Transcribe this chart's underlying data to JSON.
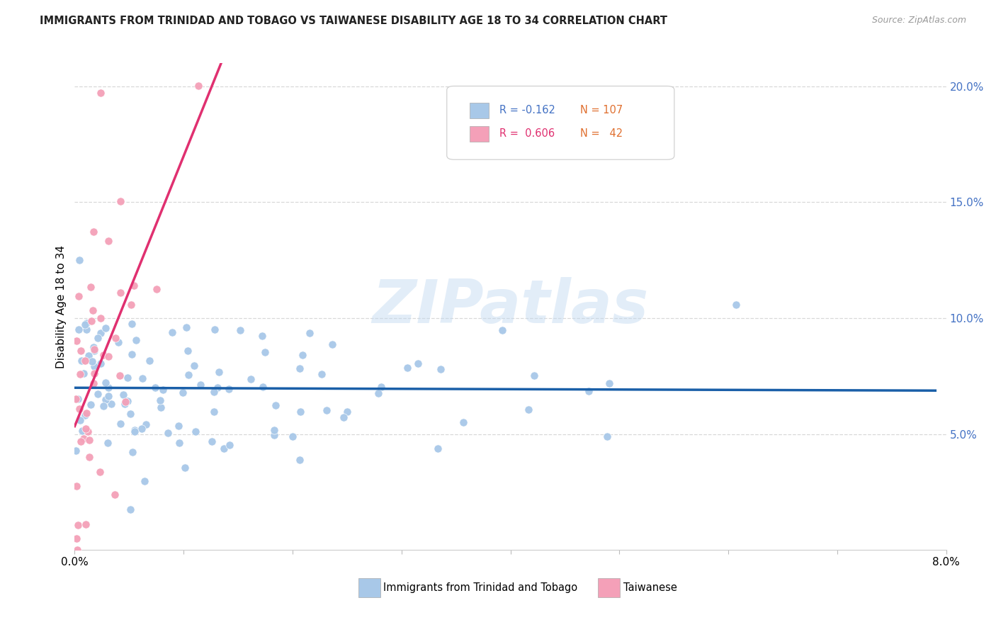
{
  "title": "IMMIGRANTS FROM TRINIDAD AND TOBAGO VS TAIWANESE DISABILITY AGE 18 TO 34 CORRELATION CHART",
  "source": "Source: ZipAtlas.com",
  "ylabel": "Disability Age 18 to 34",
  "xlim": [
    0.0,
    0.08
  ],
  "ylim": [
    0.0,
    0.21
  ],
  "right_yticks": [
    0.05,
    0.1,
    0.15,
    0.2
  ],
  "right_yticklabels": [
    "5.0%",
    "10.0%",
    "15.0%",
    "20.0%"
  ],
  "blue_scatter_color": "#a8c8e8",
  "blue_line_color": "#1a5fa8",
  "pink_scatter_color": "#f4a0b8",
  "pink_line_color": "#e03070",
  "watermark": "ZIPatlas",
  "bg_color": "#ffffff",
  "grid_color": "#d8d8d8",
  "title_color": "#222222",
  "source_color": "#999999",
  "right_tick_color": "#4472c4",
  "n_color": "#e07030",
  "blue_r_color": "#4472c4",
  "pink_r_color": "#e03070",
  "legend_blue_r": "R = -0.162",
  "legend_blue_n": "N = 107",
  "legend_pink_r": "R =  0.606",
  "legend_pink_n": "N =   42",
  "bottom_label1": "Immigrants from Trinidad and Tobago",
  "bottom_label2": "Taiwanese"
}
